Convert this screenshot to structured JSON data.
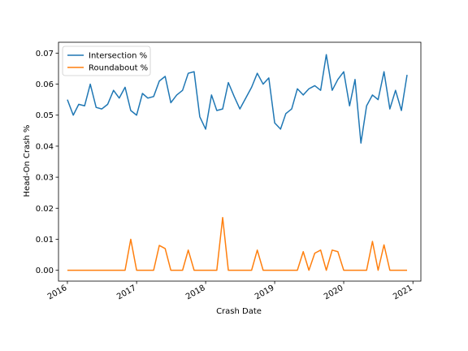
{
  "chart_data": {
    "type": "line",
    "xlabel": "Crash Date",
    "ylabel": "Head-On Crash %",
    "xlim": [
      "2015-11-15",
      "2021-02-12"
    ],
    "ylim": [
      -0.0035,
      0.0735
    ],
    "x_ticks": [
      {
        "date": "2016-01-01",
        "label": "2016"
      },
      {
        "date": "2017-01-01",
        "label": "2017"
      },
      {
        "date": "2018-01-01",
        "label": "2018"
      },
      {
        "date": "2019-01-01",
        "label": "2019"
      },
      {
        "date": "2020-01-01",
        "label": "2020"
      },
      {
        "date": "2021-01-01",
        "label": "2021"
      }
    ],
    "y_ticks": [
      {
        "value": 0.0,
        "label": "0.00"
      },
      {
        "value": 0.01,
        "label": "0.01"
      },
      {
        "value": 0.02,
        "label": "0.02"
      },
      {
        "value": 0.03,
        "label": "0.03"
      },
      {
        "value": 0.04,
        "label": "0.04"
      },
      {
        "value": 0.05,
        "label": "0.05"
      },
      {
        "value": 0.06,
        "label": "0.06"
      },
      {
        "value": 0.07,
        "label": "0.07"
      }
    ],
    "grid": false,
    "legend_placement": "top-left",
    "x": [
      "2016-01",
      "2016-02",
      "2016-03",
      "2016-04",
      "2016-05",
      "2016-06",
      "2016-07",
      "2016-08",
      "2016-09",
      "2016-10",
      "2016-11",
      "2016-12",
      "2017-01",
      "2017-02",
      "2017-03",
      "2017-04",
      "2017-05",
      "2017-06",
      "2017-07",
      "2017-08",
      "2017-09",
      "2017-10",
      "2017-11",
      "2017-12",
      "2018-01",
      "2018-02",
      "2018-03",
      "2018-04",
      "2018-05",
      "2018-06",
      "2018-07",
      "2018-08",
      "2018-09",
      "2018-10",
      "2018-11",
      "2018-12",
      "2019-01",
      "2019-02",
      "2019-03",
      "2019-04",
      "2019-05",
      "2019-06",
      "2019-07",
      "2019-08",
      "2019-09",
      "2019-10",
      "2019-11",
      "2019-12",
      "2020-01",
      "2020-02",
      "2020-03",
      "2020-04",
      "2020-05",
      "2020-06",
      "2020-07",
      "2020-08",
      "2020-09",
      "2020-10",
      "2020-11",
      "2020-12"
    ],
    "series": [
      {
        "name": "Intersection %",
        "color": "#1f77b4",
        "values": [
          0.055,
          0.05,
          0.0535,
          0.053,
          0.06,
          0.0525,
          0.052,
          0.0535,
          0.058,
          0.0555,
          0.059,
          0.0515,
          0.05,
          0.057,
          0.0555,
          0.056,
          0.061,
          0.0625,
          0.054,
          0.0565,
          0.058,
          0.0635,
          0.064,
          0.0495,
          0.0455,
          0.0565,
          0.0515,
          0.052,
          0.0605,
          0.056,
          0.052,
          0.0555,
          0.059,
          0.0635,
          0.06,
          0.062,
          0.0475,
          0.0455,
          0.0505,
          0.052,
          0.0585,
          0.0565,
          0.0585,
          0.0595,
          0.058,
          0.0695,
          0.058,
          0.0615,
          0.064,
          0.053,
          0.0615,
          0.041,
          0.053,
          0.0565,
          0.055,
          0.064,
          0.052,
          0.058,
          0.0515,
          0.063
        ]
      },
      {
        "name": "Roundabout %",
        "color": "#ff7f0e",
        "values": [
          0,
          0,
          0,
          0,
          0,
          0,
          0,
          0,
          0,
          0,
          0,
          0.01,
          0,
          0,
          0,
          0,
          0.008,
          0.007,
          0,
          0,
          0,
          0.0065,
          0,
          0,
          0,
          0,
          0,
          0.017,
          0,
          0,
          0,
          0,
          0,
          0.0065,
          0,
          0,
          0,
          0,
          0,
          0,
          0,
          0.006,
          0,
          0.0055,
          0.0065,
          0,
          0.0065,
          0.006,
          0,
          0,
          0,
          0,
          0,
          0.0093,
          0,
          0.0082,
          0,
          0,
          0,
          0
        ]
      }
    ]
  }
}
